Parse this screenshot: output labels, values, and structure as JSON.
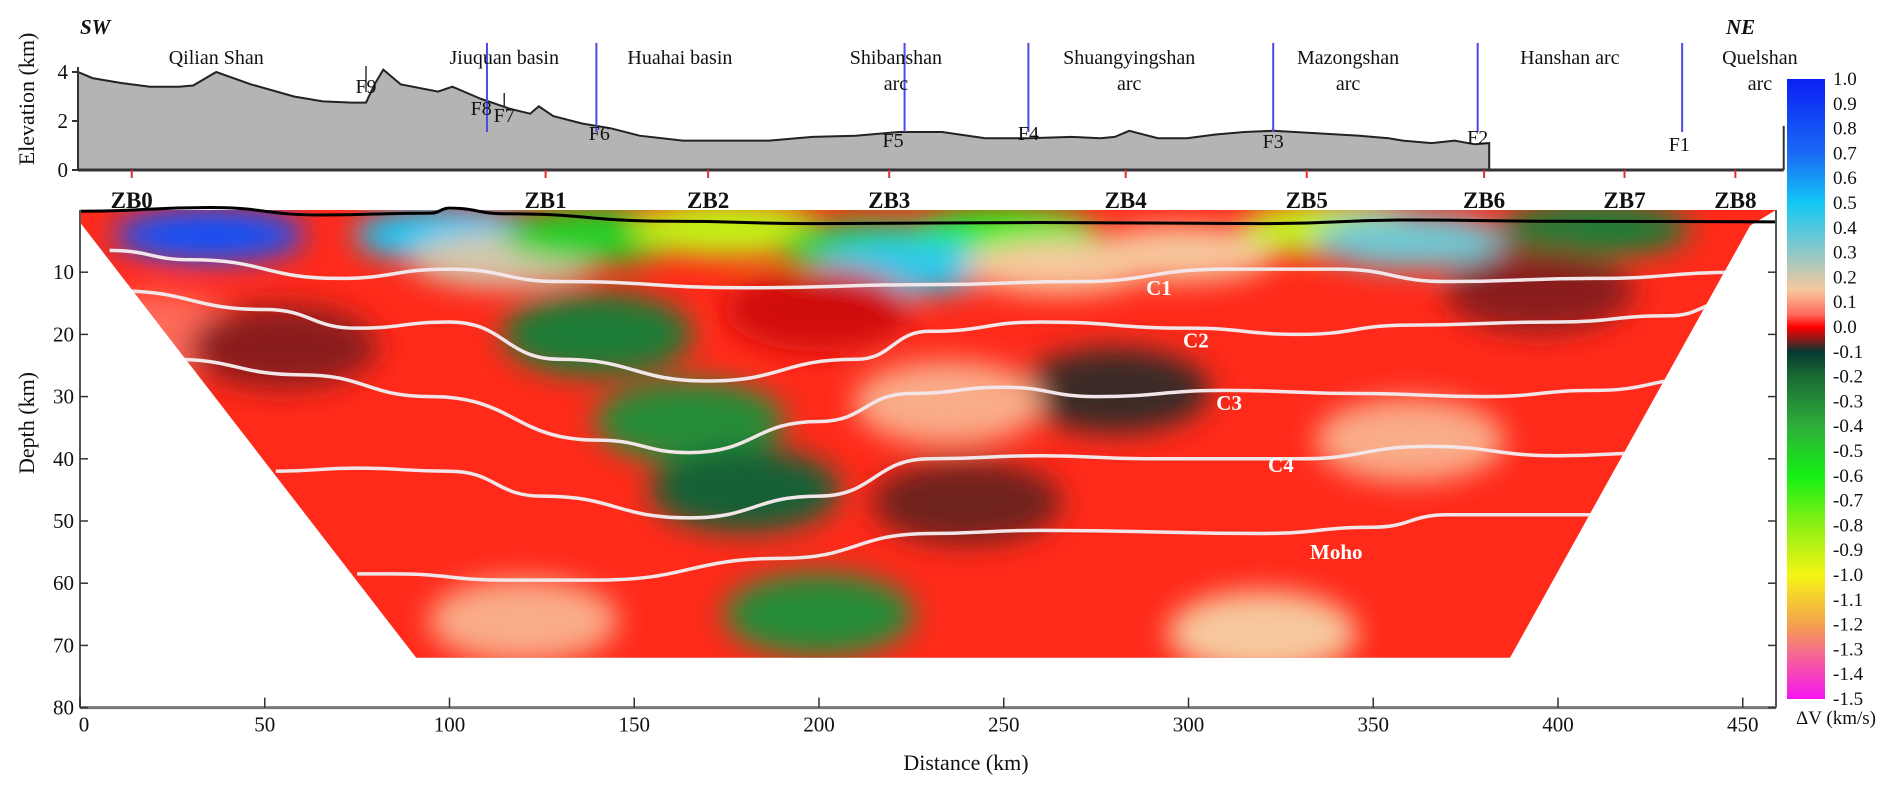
{
  "chart_data": {
    "type": "heatmap",
    "title": "",
    "direction_labels": {
      "left": "SW",
      "right": "NE"
    },
    "xlabel": "Distance (km)",
    "xlim": [
      0,
      460
    ],
    "xticks": [
      0,
      50,
      100,
      150,
      200,
      250,
      300,
      350,
      400,
      450
    ],
    "topography": {
      "ylabel": "Elevation (km)",
      "ylim": [
        0,
        4.2
      ],
      "yticks": [
        0,
        2,
        4
      ],
      "profile": [
        [
          0,
          4.0
        ],
        [
          5,
          3.75
        ],
        [
          15,
          3.55
        ],
        [
          25,
          3.4
        ],
        [
          35,
          3.4
        ],
        [
          40,
          3.45
        ],
        [
          48,
          4.0
        ],
        [
          60,
          3.5
        ],
        [
          75,
          3.0
        ],
        [
          85,
          2.8
        ],
        [
          95,
          2.75
        ],
        [
          100,
          2.75
        ],
        [
          103,
          3.5
        ],
        [
          106,
          4.1
        ],
        [
          112,
          3.5
        ],
        [
          125,
          3.2
        ],
        [
          130,
          3.4
        ],
        [
          140,
          2.9
        ],
        [
          150,
          2.5
        ],
        [
          157,
          2.3
        ],
        [
          160,
          2.6
        ],
        [
          165,
          2.2
        ],
        [
          175,
          1.9
        ],
        [
          185,
          1.7
        ],
        [
          195,
          1.4
        ],
        [
          210,
          1.2
        ],
        [
          240,
          1.2
        ],
        [
          255,
          1.35
        ],
        [
          270,
          1.4
        ],
        [
          285,
          1.55
        ],
        [
          300,
          1.55
        ],
        [
          315,
          1.3
        ],
        [
          330,
          1.3
        ],
        [
          345,
          1.35
        ],
        [
          355,
          1.3
        ],
        [
          360,
          1.35
        ],
        [
          365,
          1.6
        ],
        [
          375,
          1.3
        ],
        [
          385,
          1.3
        ],
        [
          395,
          1.45
        ],
        [
          405,
          1.55
        ],
        [
          415,
          1.6
        ],
        [
          430,
          1.5
        ],
        [
          445,
          1.4
        ],
        [
          455,
          1.3
        ],
        [
          460,
          1.2
        ],
        [
          470,
          1.1
        ],
        [
          478,
          1.2
        ],
        [
          485,
          1.05
        ],
        [
          490,
          1.1
        ]
      ],
      "regions": [
        {
          "name": "Qilian Shan",
          "x": 48
        },
        {
          "name": "Jiuquan basin",
          "x": 148
        },
        {
          "name": "Huahai basin",
          "x": 209
        },
        {
          "name": "Shibanshan arc",
          "x": 284
        },
        {
          "name": "Shuangyingshan arc",
          "x": 365
        },
        {
          "name": "Mazongshan arc",
          "x": 441
        },
        {
          "name": "Hanshan arc",
          "x": 518
        },
        {
          "name": "Quelshan arc",
          "x": 584
        }
      ],
      "boundaries": [
        142,
        180,
        287,
        330,
        415,
        486,
        557
      ],
      "faults": [
        {
          "name": "F9",
          "x": 100
        },
        {
          "name": "F8",
          "x": 140
        },
        {
          "name": "F7",
          "x": 148
        },
        {
          "name": "F6",
          "x": 181
        },
        {
          "name": "F5",
          "x": 283
        },
        {
          "name": "F4",
          "x": 330
        },
        {
          "name": "F3",
          "x": 415
        },
        {
          "name": "F2",
          "x": 486
        },
        {
          "name": "F1",
          "x": 556
        }
      ]
    },
    "stations": [
      {
        "name": "ZB0",
        "x": 14
      },
      {
        "name": "ZB1",
        "x": 126
      },
      {
        "name": "ZB2",
        "x": 170
      },
      {
        "name": "ZB3",
        "x": 219
      },
      {
        "name": "ZB4",
        "x": 283
      },
      {
        "name": "ZB5",
        "x": 332
      },
      {
        "name": "ZB6",
        "x": 380
      },
      {
        "name": "ZB7",
        "x": 418
      },
      {
        "name": "ZB8",
        "x": 448
      }
    ],
    "section": {
      "ylabel": "Depth (km)",
      "ylim": [
        0,
        80
      ],
      "yticks": [
        10,
        20,
        30,
        40,
        50,
        60,
        70,
        80
      ],
      "domain_polygon": [
        [
          0,
          0
        ],
        [
          459,
          0
        ],
        [
          452,
          2.5
        ],
        [
          387,
          72
        ],
        [
          91,
          72
        ],
        [
          0,
          2
        ]
      ],
      "interfaces": [
        {
          "name": "C1",
          "label_at": [
            292,
            12.5
          ],
          "points": [
            [
              8,
              6.5
            ],
            [
              30,
              8
            ],
            [
              70,
              11
            ],
            [
              100,
              9.5
            ],
            [
              130,
              11.5
            ],
            [
              180,
              12.5
            ],
            [
              230,
              12
            ],
            [
              270,
              11.5
            ],
            [
              310,
              9.5
            ],
            [
              340,
              9.5
            ],
            [
              370,
              11.5
            ],
            [
              410,
              11
            ],
            [
              450,
              10
            ]
          ]
        },
        {
          "name": "C2",
          "label_at": [
            302,
            21
          ],
          "points": [
            [
              10,
              13
            ],
            [
              50,
              16
            ],
            [
              75,
              19
            ],
            [
              100,
              18
            ],
            [
              130,
              24
            ],
            [
              170,
              27.5
            ],
            [
              210,
              24
            ],
            [
              230,
              19.5
            ],
            [
              260,
              18
            ],
            [
              300,
              19
            ],
            [
              330,
              20
            ],
            [
              360,
              18.5
            ],
            [
              400,
              18
            ],
            [
              430,
              17
            ],
            [
              448,
              14.5
            ]
          ]
        },
        {
          "name": "C3",
          "label_at": [
            311,
            31
          ],
          "points": [
            [
              25,
              24
            ],
            [
              60,
              26.5
            ],
            [
              95,
              30
            ],
            [
              140,
              37
            ],
            [
              165,
              39
            ],
            [
              200,
              34
            ],
            [
              225,
              29.5
            ],
            [
              250,
              28.5
            ],
            [
              275,
              30
            ],
            [
              310,
              29
            ],
            [
              345,
              29.5
            ],
            [
              380,
              30
            ],
            [
              410,
              29
            ],
            [
              440,
              27
            ]
          ]
        },
        {
          "name": "C4",
          "label_at": [
            325,
            41
          ],
          "points": [
            [
              53,
              42
            ],
            [
              75,
              41.5
            ],
            [
              100,
              42
            ],
            [
              125,
              46
            ],
            [
              165,
              49.5
            ],
            [
              200,
              46
            ],
            [
              230,
              40
            ],
            [
              260,
              39.5
            ],
            [
              290,
              40
            ],
            [
              330,
              40
            ],
            [
              365,
              38
            ],
            [
              400,
              39.5
            ],
            [
              428,
              39
            ]
          ]
        },
        {
          "name": "Moho",
          "label_at": [
            340,
            55
          ],
          "points": [
            [
              75,
              58.5
            ],
            [
              85,
              58.5
            ],
            [
              115,
              59.5
            ],
            [
              140,
              59.5
            ],
            [
              190,
              56
            ],
            [
              230,
              52
            ],
            [
              260,
              51.5
            ],
            [
              320,
              52
            ],
            [
              350,
              51
            ],
            [
              370,
              49
            ],
            [
              395,
              49
            ],
            [
              410,
              49
            ]
          ]
        }
      ],
      "anomalies": [
        {
          "x": 35,
          "z": 4,
          "dv": 0.8
        },
        {
          "x": 100,
          "z": 4,
          "dv": 0.5
        },
        {
          "x": 115,
          "z": 8,
          "dv": 0.2
        },
        {
          "x": 140,
          "z": 4,
          "dv": -0.5
        },
        {
          "x": 175,
          "z": 3,
          "dv": -0.9
        },
        {
          "x": 215,
          "z": 6,
          "dv": -0.5
        },
        {
          "x": 250,
          "z": 4,
          "dv": -0.6
        },
        {
          "x": 224,
          "z": 9,
          "dv": 0.45
        },
        {
          "x": 265,
          "z": 9,
          "dv": 0.15
        },
        {
          "x": 298,
          "z": 7,
          "dv": 0.15
        },
        {
          "x": 340,
          "z": 3,
          "dv": -0.9
        },
        {
          "x": 360,
          "z": 5,
          "dv": 0.35
        },
        {
          "x": 410,
          "z": 3,
          "dv": -0.25
        },
        {
          "x": 20,
          "z": 20,
          "dv": 0.05
        },
        {
          "x": 55,
          "z": 22,
          "dv": -0.05
        },
        {
          "x": 140,
          "z": 20,
          "dv": -0.25
        },
        {
          "x": 165,
          "z": 34,
          "dv": -0.3
        },
        {
          "x": 200,
          "z": 16,
          "dv": -0.02
        },
        {
          "x": 280,
          "z": 29,
          "dv": -0.08
        },
        {
          "x": 235,
          "z": 31,
          "dv": 0.12
        },
        {
          "x": 395,
          "z": 13,
          "dv": -0.05
        },
        {
          "x": 360,
          "z": 37,
          "dv": 0.12
        },
        {
          "x": 180,
          "z": 45,
          "dv": -0.18
        },
        {
          "x": 240,
          "z": 47,
          "dv": -0.06
        },
        {
          "x": 200,
          "z": 65,
          "dv": -0.3
        },
        {
          "x": 120,
          "z": 66,
          "dv": 0.12
        },
        {
          "x": 320,
          "z": 68,
          "dv": 0.15
        }
      ]
    },
    "colorbar": {
      "label": "ΔV (km/s)",
      "range": [
        -1.5,
        1.0
      ],
      "ticks": [
        "1.0",
        "0.9",
        "0.8",
        "0.7",
        "0.6",
        "0.5",
        "0.4",
        "0.3",
        "0.2",
        "0.1",
        "0.0",
        "-0.1",
        "-0.2",
        "-0.3",
        "-0.4",
        "-0.5",
        "-0.6",
        "-0.7",
        "-0.8",
        "-0.9",
        "-1.0",
        "-1.1",
        "-1.2",
        "-1.3",
        "-1.4",
        "-1.5"
      ],
      "stops": [
        {
          "v": 1.0,
          "color": "#0a1ff5"
        },
        {
          "v": 0.7,
          "color": "#1a6af5"
        },
        {
          "v": 0.5,
          "color": "#12c8f5"
        },
        {
          "v": 0.3,
          "color": "#8fc8c8"
        },
        {
          "v": 0.15,
          "color": "#f7c89c"
        },
        {
          "v": 0.05,
          "color": "#ff6a5a"
        },
        {
          "v": 0.0,
          "color": "#ff0000"
        },
        {
          "v": -0.05,
          "color": "#8a1a1a"
        },
        {
          "v": -0.1,
          "color": "#053830"
        },
        {
          "v": -0.2,
          "color": "#1a6b35"
        },
        {
          "v": -0.4,
          "color": "#2fae3a"
        },
        {
          "v": -0.6,
          "color": "#14f014"
        },
        {
          "v": -0.8,
          "color": "#8cf014"
        },
        {
          "v": -1.0,
          "color": "#f5f514"
        },
        {
          "v": -1.2,
          "color": "#f5a050"
        },
        {
          "v": -1.5,
          "color": "#f514f0"
        }
      ]
    }
  }
}
